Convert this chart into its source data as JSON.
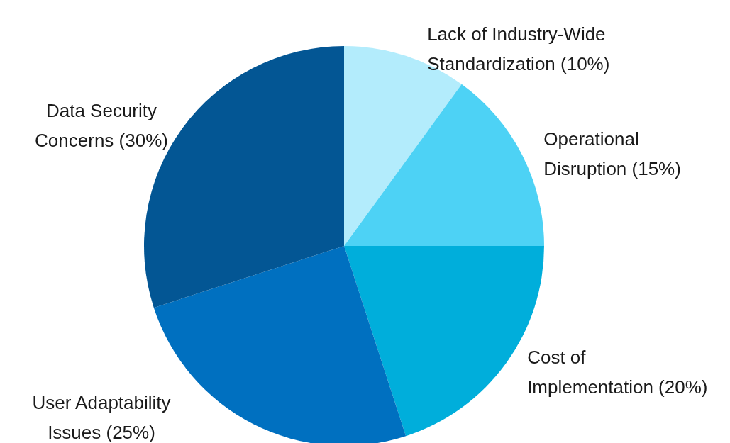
{
  "chart_data": {
    "type": "pie",
    "categories": [
      "Lack of Industry-Wide Standardization",
      "Operational Disruption",
      "Cost of Implementation",
      "User Adaptability Issues",
      "Data Security Concerns"
    ],
    "values": [
      10,
      15,
      20,
      25,
      30
    ],
    "value_labels": [
      "(10%)",
      "(15%)",
      "(20%)",
      "(25%)",
      "(30%)"
    ],
    "colors": [
      "#b3ecfc",
      "#4dd2f5",
      "#00aedb",
      "#0070c0",
      "#035694"
    ]
  }
}
